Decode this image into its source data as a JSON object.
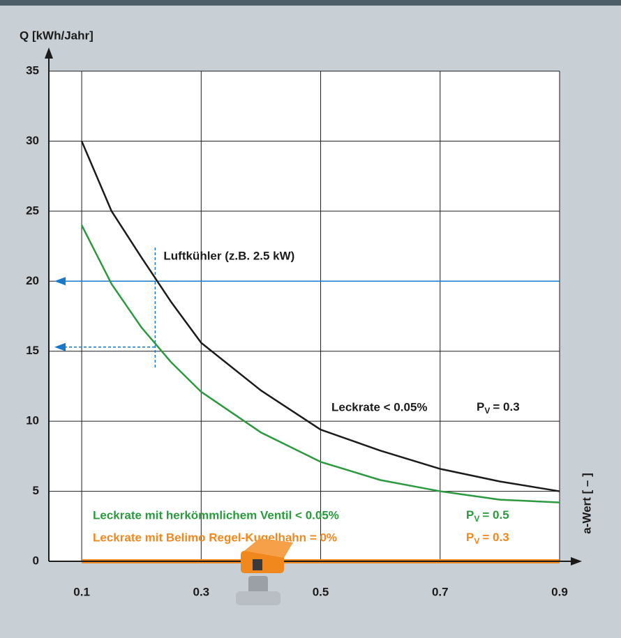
{
  "chart_data": {
    "type": "line",
    "y_axis_label": "Q [kWh/Jahr]",
    "x_axis_label": "a-Wert [ – ]",
    "x": [
      0.1,
      0.15,
      0.2,
      0.25,
      0.3,
      0.4,
      0.5,
      0.6,
      0.7,
      0.8,
      0.9
    ],
    "xlim": [
      0.045,
      0.9
    ],
    "xticks": [
      0.1,
      0.3,
      0.5,
      0.7,
      0.9
    ],
    "ylim": [
      0,
      35
    ],
    "yticks": [
      0,
      5,
      10,
      15,
      20,
      25,
      30,
      35
    ],
    "grid": true,
    "pv_symbol": "P",
    "pv_subscript": "V",
    "series": [
      {
        "name": "Leckrate < 0.05%",
        "pv": "= 0.3",
        "color": "#1b1b1b",
        "values": [
          30,
          25,
          21.7,
          18.5,
          15.6,
          12.2,
          9.4,
          7.9,
          6.6,
          5.7,
          5.0
        ]
      },
      {
        "name": "Leckrate mit herkömmlichem Ventil < 0.05%",
        "pv": "= 0.5",
        "color": "#2b9a3e",
        "values": [
          24,
          19.8,
          16.7,
          14.2,
          12.1,
          9.2,
          7.1,
          5.8,
          5.0,
          4.4,
          4.2
        ]
      },
      {
        "name": "Leckrate mit Belimo Regel-Kugelhahn = 0%",
        "pv": "= 0.3",
        "color": "#f0881e",
        "values": [
          0,
          0,
          0,
          0,
          0,
          0,
          0,
          0,
          0,
          0,
          0
        ]
      }
    ],
    "annotation": {
      "text": "Luftkühler (z.B. 2.5 kW)",
      "x": 0.223,
      "y_levels": [
        20,
        15.3
      ],
      "color": "#1a78c8"
    }
  }
}
